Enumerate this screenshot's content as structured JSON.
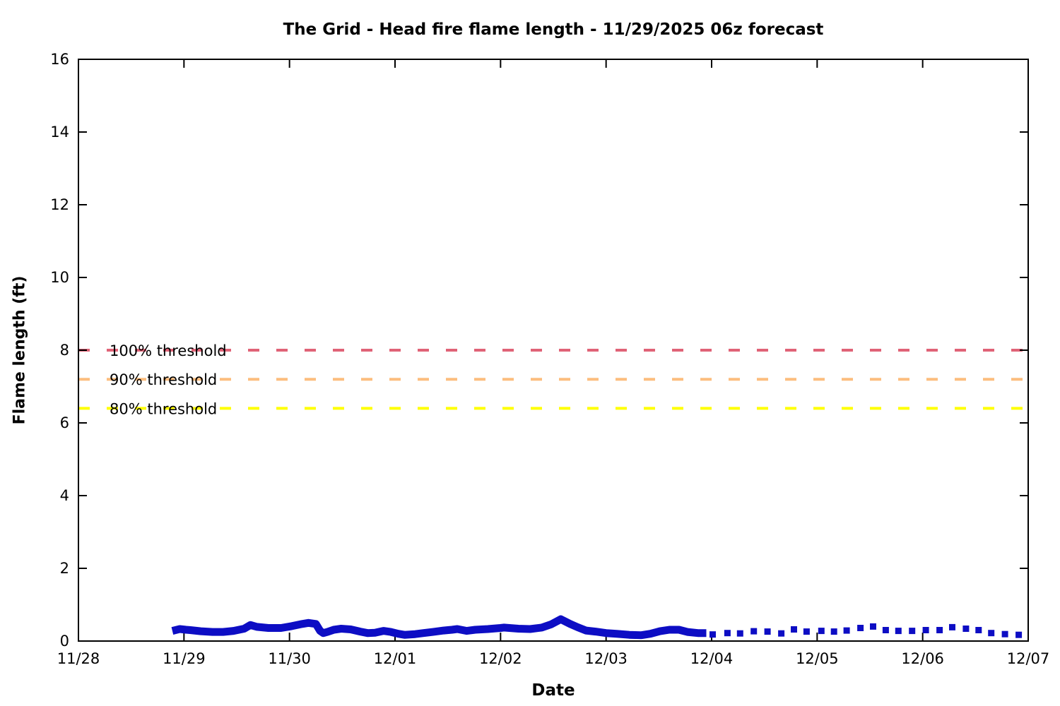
{
  "chart": {
    "title": "The Grid - Head fire flame length - 11/29/2025 06z forecast"
  },
  "chart_data": {
    "type": "line",
    "title": "The Grid - Head fire flame length - 11/29/2025 06z forecast",
    "xlabel": "Date",
    "ylabel": "Flame length (ft)",
    "xlim": [
      0,
      9
    ],
    "ylim": [
      0,
      16
    ],
    "x_tick_labels": [
      "11/28",
      "11/29",
      "11/30",
      "12/01",
      "12/02",
      "12/03",
      "12/04",
      "12/05",
      "12/06",
      "12/07"
    ],
    "y_ticks": [
      0,
      2,
      4,
      6,
      8,
      10,
      12,
      14,
      16
    ],
    "grid": false,
    "legend": "none",
    "background": "#ffffff",
    "border_color": "#000000",
    "thresholds": [
      {
        "label": "100% threshold",
        "value": 8.0,
        "color": "#e06377"
      },
      {
        "label": "90% threshold",
        "value": 7.2,
        "color": "#fcbd7e"
      },
      {
        "label": "80% threshold",
        "value": 6.4,
        "color": "#ffff00"
      }
    ],
    "series": [
      {
        "id": "solid-line",
        "style": "solid",
        "color": "#0d0dc4",
        "x_unit": "days since 11/28",
        "points": [
          [
            0.89,
            0.28
          ],
          [
            0.96,
            0.33
          ],
          [
            1.02,
            0.31
          ],
          [
            1.06,
            0.3
          ],
          [
            1.16,
            0.27
          ],
          [
            1.27,
            0.25
          ],
          [
            1.37,
            0.25
          ],
          [
            1.47,
            0.28
          ],
          [
            1.57,
            0.34
          ],
          [
            1.63,
            0.44
          ],
          [
            1.69,
            0.39
          ],
          [
            1.8,
            0.36
          ],
          [
            1.92,
            0.36
          ],
          [
            2.02,
            0.41
          ],
          [
            2.12,
            0.47
          ],
          [
            2.18,
            0.5
          ],
          [
            2.25,
            0.47
          ],
          [
            2.29,
            0.28
          ],
          [
            2.32,
            0.22
          ],
          [
            2.36,
            0.25
          ],
          [
            2.42,
            0.31
          ],
          [
            2.49,
            0.34
          ],
          [
            2.58,
            0.32
          ],
          [
            2.67,
            0.26
          ],
          [
            2.74,
            0.22
          ],
          [
            2.81,
            0.23
          ],
          [
            2.89,
            0.28
          ],
          [
            2.96,
            0.25
          ],
          [
            3.03,
            0.2
          ],
          [
            3.09,
            0.17
          ],
          [
            3.19,
            0.19
          ],
          [
            3.27,
            0.22
          ],
          [
            3.36,
            0.25
          ],
          [
            3.46,
            0.29
          ],
          [
            3.54,
            0.31
          ],
          [
            3.59,
            0.33
          ],
          [
            3.68,
            0.28
          ],
          [
            3.76,
            0.31
          ],
          [
            3.88,
            0.33
          ],
          [
            4.0,
            0.36
          ],
          [
            4.03,
            0.37
          ],
          [
            4.17,
            0.34
          ],
          [
            4.28,
            0.33
          ],
          [
            4.39,
            0.37
          ],
          [
            4.48,
            0.46
          ],
          [
            4.57,
            0.6
          ],
          [
            4.66,
            0.47
          ],
          [
            4.73,
            0.38
          ],
          [
            4.81,
            0.29
          ],
          [
            4.9,
            0.26
          ],
          [
            5.0,
            0.22
          ],
          [
            5.1,
            0.2
          ],
          [
            5.22,
            0.17
          ],
          [
            5.33,
            0.16
          ],
          [
            5.42,
            0.2
          ],
          [
            5.51,
            0.27
          ],
          [
            5.6,
            0.31
          ],
          [
            5.69,
            0.31
          ],
          [
            5.77,
            0.25
          ],
          [
            5.87,
            0.22
          ],
          [
            5.95,
            0.22
          ]
        ]
      },
      {
        "id": "forecast-dots",
        "style": "dotted-squares",
        "color": "#0d0dc4",
        "x_unit": "days since 11/28",
        "points": [
          [
            6.01,
            0.18
          ],
          [
            6.15,
            0.22
          ],
          [
            6.27,
            0.21
          ],
          [
            6.4,
            0.27
          ],
          [
            6.53,
            0.26
          ],
          [
            6.66,
            0.21
          ],
          [
            6.78,
            0.32
          ],
          [
            6.9,
            0.26
          ],
          [
            7.04,
            0.28
          ],
          [
            7.16,
            0.26
          ],
          [
            7.28,
            0.29
          ],
          [
            7.41,
            0.36
          ],
          [
            7.53,
            0.4
          ],
          [
            7.65,
            0.3
          ],
          [
            7.77,
            0.28
          ],
          [
            7.9,
            0.28
          ],
          [
            8.03,
            0.3
          ],
          [
            8.16,
            0.3
          ],
          [
            8.28,
            0.38
          ],
          [
            8.41,
            0.34
          ],
          [
            8.53,
            0.3
          ],
          [
            8.65,
            0.22
          ],
          [
            8.78,
            0.19
          ],
          [
            8.91,
            0.17
          ]
        ]
      }
    ]
  }
}
